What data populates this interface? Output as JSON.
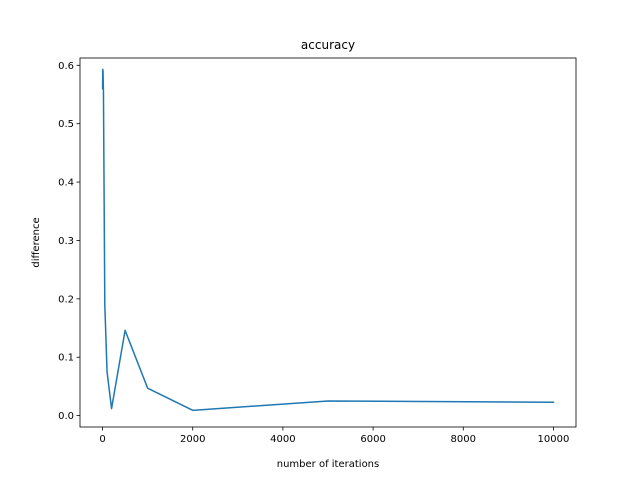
{
  "chart_data": {
    "type": "line",
    "title": "accuracy",
    "xlabel": "number of iterations",
    "ylabel": "difference",
    "xlim": [
      -500,
      10500
    ],
    "ylim": [
      -0.0195,
      0.6125
    ],
    "xticks": [
      0,
      2000,
      4000,
      6000,
      8000,
      10000
    ],
    "yticks": [
      0.0,
      0.1,
      0.2,
      0.3,
      0.4,
      0.5,
      0.6
    ],
    "xtick_labels": [
      "0",
      "2000",
      "4000",
      "6000",
      "8000",
      "10000"
    ],
    "ytick_labels": [
      "0.0",
      "0.1",
      "0.2",
      "0.3",
      "0.4",
      "0.5",
      "0.6"
    ],
    "grid": false,
    "series": [
      {
        "color": "#1f77b4",
        "x": [
          1,
          5,
          10,
          20,
          50,
          100,
          200,
          500,
          1000,
          2000,
          5000,
          10000
        ],
        "y": [
          0.56,
          0.593,
          0.59,
          0.555,
          0.19,
          0.075,
          0.012,
          0.146,
          0.047,
          0.009,
          0.025,
          0.023
        ]
      }
    ]
  }
}
